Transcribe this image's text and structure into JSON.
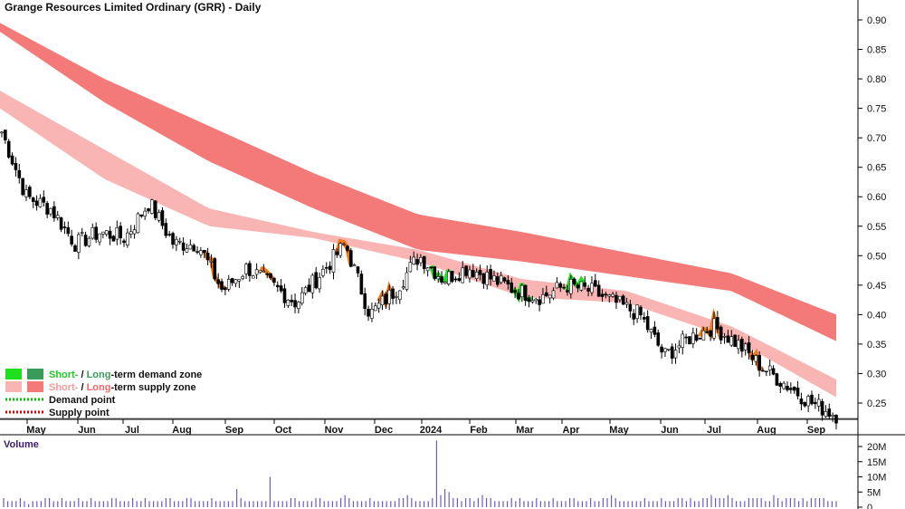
{
  "chart_data": {
    "type": "candlestick",
    "title": "Grange Resources Limited Ordinary (GRR) - Daily",
    "price_axis": {
      "ticks": [
        "0.90",
        "0.85",
        "0.80",
        "0.75",
        "0.70",
        "0.65",
        "0.60",
        "0.55",
        "0.50",
        "0.45",
        "0.40",
        "0.35",
        "0.30",
        "0.25"
      ],
      "range": [
        0.22,
        0.92
      ]
    },
    "time_axis": {
      "labels": [
        "May",
        "Jun",
        "Jul",
        "Aug",
        "Sep",
        "Oct",
        "Nov",
        "Dec",
        "2024",
        "Feb",
        "Mar",
        "Apr",
        "May",
        "Jun",
        "Jul",
        "Aug",
        "Sep"
      ]
    },
    "volume_panel": {
      "title": "Volume",
      "ticks": [
        "20M",
        "15M",
        "10M",
        "5M",
        "0"
      ],
      "range": [
        0,
        23
      ]
    },
    "colors": {
      "long_supply_zone": "#f47a7a",
      "short_supply_zone": "#f9b4b4",
      "short_demand_zone": "#1fe01f",
      "long_demand_zone": "#3a9a5a",
      "demand_point": "#00c000",
      "supply_point": "#d00000",
      "volume_bar": "#6a5acd",
      "orange_zone": "#f07a18"
    },
    "close_series": [
      {
        "month": "Apr",
        "close": 0.71
      },
      {
        "month": "May",
        "close": 0.6
      },
      {
        "month": "May",
        "close": 0.58
      },
      {
        "month": "Jun",
        "close": 0.52
      },
      {
        "month": "Jun",
        "close": 0.54
      },
      {
        "month": "Jul",
        "close": 0.53
      },
      {
        "month": "Jul",
        "close": 0.59
      },
      {
        "month": "Aug",
        "close": 0.52
      },
      {
        "month": "Aug",
        "close": 0.52
      },
      {
        "month": "Sep",
        "close": 0.44
      },
      {
        "month": "Sep",
        "close": 0.48
      },
      {
        "month": "Oct",
        "close": 0.45
      },
      {
        "month": "Oct",
        "close": 0.42
      },
      {
        "month": "Nov",
        "close": 0.47
      },
      {
        "month": "Nov",
        "close": 0.52
      },
      {
        "month": "Dec",
        "close": 0.4
      },
      {
        "month": "Dec",
        "close": 0.44
      },
      {
        "month": "2024",
        "close": 0.5
      },
      {
        "month": "2024",
        "close": 0.46
      },
      {
        "month": "Feb",
        "close": 0.48
      },
      {
        "month": "Feb",
        "close": 0.46
      },
      {
        "month": "Mar",
        "close": 0.44
      },
      {
        "month": "Mar",
        "close": 0.43
      },
      {
        "month": "Apr",
        "close": 0.45
      },
      {
        "month": "Apr",
        "close": 0.44
      },
      {
        "month": "May",
        "close": 0.42
      },
      {
        "month": "May",
        "close": 0.4
      },
      {
        "month": "Jun",
        "close": 0.33
      },
      {
        "month": "Jun",
        "close": 0.36
      },
      {
        "month": "Jul",
        "close": 0.38
      },
      {
        "month": "Jul",
        "close": 0.35
      },
      {
        "month": "Aug",
        "close": 0.31
      },
      {
        "month": "Aug",
        "close": 0.28
      },
      {
        "month": "Sep",
        "close": 0.25
      },
      {
        "month": "Sep",
        "close": 0.23
      }
    ],
    "long_term_supply_zone": [
      {
        "top": 0.895,
        "bottom": 0.88
      },
      {
        "top": 0.8,
        "bottom": 0.76
      },
      {
        "top": 0.72,
        "bottom": 0.66
      },
      {
        "top": 0.64,
        "bottom": 0.58
      },
      {
        "top": 0.57,
        "bottom": 0.51
      },
      {
        "top": 0.54,
        "bottom": 0.49
      },
      {
        "top": 0.505,
        "bottom": 0.465
      },
      {
        "top": 0.47,
        "bottom": 0.44
      },
      {
        "top": 0.4,
        "bottom": 0.355
      }
    ],
    "short_term_supply_zone": [
      {
        "top": 0.78,
        "bottom": 0.75
      },
      {
        "top": 0.68,
        "bottom": 0.63
      },
      {
        "top": 0.58,
        "bottom": 0.55
      },
      {
        "top": 0.54,
        "bottom": 0.53
      },
      {
        "top": 0.51,
        "bottom": 0.49
      },
      {
        "top": 0.46,
        "bottom": 0.43
      },
      {
        "top": 0.44,
        "bottom": 0.42
      },
      {
        "top": 0.38,
        "bottom": 0.36
      },
      {
        "top": 0.29,
        "bottom": 0.26
      }
    ],
    "volume_millions": [
      3,
      2,
      2,
      2,
      3,
      2,
      1,
      2,
      2,
      2,
      3,
      3,
      2,
      2,
      3,
      2,
      2,
      2,
      3,
      2,
      2,
      3,
      2,
      2,
      2,
      2,
      3,
      3,
      2,
      2,
      2,
      3,
      2,
      2,
      3,
      2,
      2,
      2,
      2,
      3,
      3,
      2,
      2,
      2,
      3,
      3,
      2,
      2,
      2,
      2,
      3,
      2,
      2,
      2,
      2,
      2,
      6,
      3,
      2,
      2,
      2,
      2,
      2,
      2,
      10,
      2,
      2,
      2,
      2,
      3,
      3,
      2,
      2,
      2,
      2,
      3,
      3,
      2,
      2,
      2,
      2,
      3,
      4,
      3,
      2,
      2,
      2,
      2,
      3,
      2,
      2,
      2,
      2,
      2,
      2,
      3,
      3,
      4,
      3,
      2,
      2,
      2,
      2,
      3,
      22,
      4,
      6,
      5,
      3,
      3,
      2,
      3,
      3,
      2,
      3,
      4,
      3,
      3,
      2,
      2,
      2,
      2,
      3,
      2,
      3,
      2,
      2,
      2,
      3,
      2,
      2,
      2,
      3,
      2,
      2,
      2,
      3,
      3,
      2,
      2,
      2,
      3,
      2,
      2,
      3,
      3,
      4,
      3,
      2,
      2,
      2,
      2,
      2,
      2,
      3,
      2,
      2,
      2,
      3,
      2,
      2,
      2,
      3,
      3,
      2,
      3,
      2,
      2,
      3,
      3,
      4,
      3,
      3,
      3,
      4,
      3,
      2,
      2,
      2,
      3,
      3,
      3,
      3,
      2,
      2,
      4,
      3,
      2,
      3,
      3,
      3,
      2,
      3,
      2,
      3,
      3,
      3,
      3,
      2,
      2,
      2
    ]
  },
  "legend": {
    "demand_zone_short": "Short-",
    "demand_zone_sep": " / ",
    "demand_zone_long": "Long",
    "demand_zone_rest": "-term demand zone",
    "supply_zone_short": "Short-",
    "supply_zone_sep": " / ",
    "supply_zone_long": "Long",
    "supply_zone_rest": "-term supply zone",
    "demand_point": "Demand point",
    "supply_point": "Supply point"
  }
}
